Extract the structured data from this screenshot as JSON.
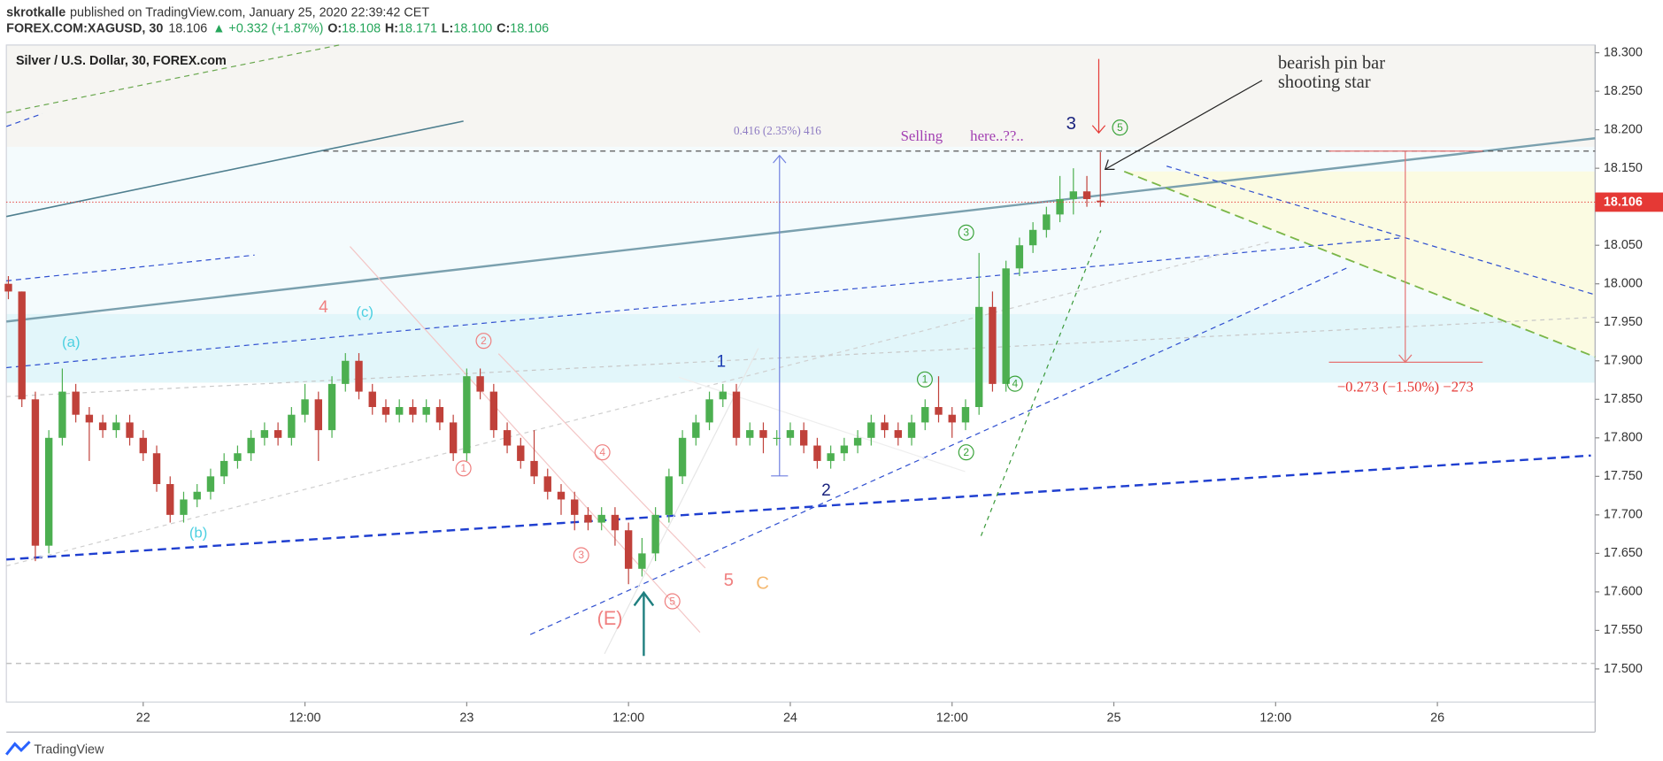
{
  "header": {
    "author": "skrotkalle",
    "published": "published on TradingView.com, January 25, 2020 22:39:42 CET",
    "symbol": "FOREX.COM:XAGUSD, 30",
    "last": "18.106",
    "change": "▲ +0.332 (+1.87%)",
    "ohlc_labels": [
      "O:",
      "H:",
      "L:",
      "C:"
    ],
    "ohlc": [
      "18.108",
      "18.171",
      "18.100",
      "18.106"
    ]
  },
  "chart_data": {
    "type": "candlestick",
    "title": "Silver / U.S. Dollar, 30, FOREX.com",
    "x": [
      -10,
      -9,
      -8,
      -7,
      -6,
      -5,
      -4,
      -3,
      -2,
      -1,
      0,
      1,
      2,
      3,
      4,
      5,
      6,
      7,
      8,
      9,
      10,
      11,
      12,
      13,
      14,
      15,
      16,
      17,
      18,
      19,
      20,
      21,
      22,
      23,
      24,
      25,
      26,
      27,
      28,
      29,
      30,
      31,
      32,
      33,
      34,
      35,
      36,
      37,
      38,
      39,
      40,
      41,
      42,
      43,
      44,
      45,
      46,
      47,
      48,
      49,
      50,
      51,
      52,
      53,
      54,
      55,
      56,
      57,
      58,
      59,
      60,
      61,
      62,
      63,
      64,
      65,
      66,
      67,
      68,
      69,
      70,
      71
    ],
    "ohlc": [
      [
        18.0,
        18.01,
        17.98,
        17.99
      ],
      [
        17.99,
        17.99,
        17.84,
        17.85
      ],
      [
        17.85,
        17.86,
        17.64,
        17.66
      ],
      [
        17.66,
        17.81,
        17.65,
        17.8
      ],
      [
        17.8,
        17.89,
        17.79,
        17.86
      ],
      [
        17.86,
        17.87,
        17.82,
        17.83
      ],
      [
        17.83,
        17.84,
        17.77,
        17.82
      ],
      [
        17.82,
        17.83,
        17.8,
        17.81
      ],
      [
        17.81,
        17.83,
        17.8,
        17.82
      ],
      [
        17.82,
        17.83,
        17.79,
        17.8
      ],
      [
        17.8,
        17.81,
        17.77,
        17.78
      ],
      [
        17.78,
        17.79,
        17.73,
        17.74
      ],
      [
        17.74,
        17.75,
        17.69,
        17.7
      ],
      [
        17.7,
        17.73,
        17.69,
        17.72
      ],
      [
        17.72,
        17.74,
        17.71,
        17.73
      ],
      [
        17.73,
        17.76,
        17.72,
        17.75
      ],
      [
        17.75,
        17.78,
        17.74,
        17.77
      ],
      [
        17.77,
        17.79,
        17.76,
        17.78
      ],
      [
        17.78,
        17.81,
        17.77,
        17.8
      ],
      [
        17.8,
        17.82,
        17.79,
        17.81
      ],
      [
        17.81,
        17.82,
        17.79,
        17.8
      ],
      [
        17.8,
        17.84,
        17.79,
        17.83
      ],
      [
        17.83,
        17.87,
        17.82,
        17.85
      ],
      [
        17.85,
        17.86,
        17.77,
        17.81
      ],
      [
        17.81,
        17.88,
        17.8,
        17.87
      ],
      [
        17.87,
        17.91,
        17.86,
        17.9
      ],
      [
        17.9,
        17.91,
        17.85,
        17.86
      ],
      [
        17.86,
        17.87,
        17.83,
        17.84
      ],
      [
        17.84,
        17.85,
        17.82,
        17.83
      ],
      [
        17.83,
        17.85,
        17.82,
        17.84
      ],
      [
        17.84,
        17.85,
        17.82,
        17.83
      ],
      [
        17.83,
        17.85,
        17.82,
        17.84
      ],
      [
        17.84,
        17.85,
        17.81,
        17.82
      ],
      [
        17.82,
        17.83,
        17.77,
        17.78
      ],
      [
        17.78,
        17.89,
        17.77,
        17.88
      ],
      [
        17.88,
        17.89,
        17.85,
        17.86
      ],
      [
        17.86,
        17.87,
        17.8,
        17.81
      ],
      [
        17.81,
        17.82,
        17.78,
        17.79
      ],
      [
        17.79,
        17.8,
        17.76,
        17.77
      ],
      [
        17.77,
        17.81,
        17.74,
        17.75
      ],
      [
        17.75,
        17.76,
        17.72,
        17.73
      ],
      [
        17.73,
        17.74,
        17.7,
        17.72
      ],
      [
        17.72,
        17.73,
        17.68,
        17.7
      ],
      [
        17.7,
        17.71,
        17.68,
        17.69
      ],
      [
        17.69,
        17.71,
        17.68,
        17.7
      ],
      [
        17.7,
        17.71,
        17.66,
        17.68
      ],
      [
        17.68,
        17.69,
        17.61,
        17.63
      ],
      [
        17.63,
        17.67,
        17.62,
        17.65
      ],
      [
        17.65,
        17.71,
        17.64,
        17.7
      ],
      [
        17.7,
        17.76,
        17.69,
        17.75
      ],
      [
        17.75,
        17.81,
        17.74,
        17.8
      ],
      [
        17.8,
        17.83,
        17.79,
        17.82
      ],
      [
        17.82,
        17.86,
        17.81,
        17.85
      ],
      [
        17.85,
        17.87,
        17.84,
        17.86
      ],
      [
        17.86,
        17.87,
        17.79,
        17.8
      ],
      [
        17.8,
        17.82,
        17.79,
        17.81
      ],
      [
        17.81,
        17.82,
        17.78,
        17.8
      ],
      [
        17.8,
        17.81,
        17.79,
        17.8
      ],
      [
        17.8,
        17.82,
        17.79,
        17.81
      ],
      [
        17.81,
        17.82,
        17.78,
        17.79
      ],
      [
        17.79,
        17.8,
        17.76,
        17.77
      ],
      [
        17.77,
        17.79,
        17.76,
        17.78
      ],
      [
        17.78,
        17.8,
        17.77,
        17.79
      ],
      [
        17.79,
        17.81,
        17.78,
        17.8
      ],
      [
        17.8,
        17.83,
        17.79,
        17.82
      ],
      [
        17.82,
        17.83,
        17.8,
        17.81
      ],
      [
        17.81,
        17.82,
        17.79,
        17.8
      ],
      [
        17.8,
        17.83,
        17.79,
        17.82
      ],
      [
        17.82,
        17.85,
        17.81,
        17.84
      ],
      [
        17.84,
        17.88,
        17.82,
        17.83
      ],
      [
        17.83,
        17.84,
        17.8,
        17.82
      ],
      [
        17.82,
        17.85,
        17.81,
        17.84
      ],
      [
        17.84,
        18.04,
        17.83,
        17.97
      ],
      [
        17.97,
        17.99,
        17.86,
        17.87
      ],
      [
        17.87,
        18.03,
        17.86,
        18.02
      ],
      [
        18.02,
        18.06,
        18.01,
        18.05
      ],
      [
        18.05,
        18.08,
        18.04,
        18.07
      ],
      [
        18.07,
        18.1,
        18.06,
        18.09
      ],
      [
        18.09,
        18.14,
        18.08,
        18.11
      ],
      [
        18.11,
        18.15,
        18.09,
        18.12
      ],
      [
        18.12,
        18.14,
        18.1,
        18.11
      ],
      [
        18.108,
        18.171,
        18.1,
        18.106
      ]
    ],
    "up_color": "#4caf50",
    "down_color": "#c0413a",
    "xlim": [
      -10.15,
      107.7
    ],
    "xticks": [
      {
        "value": 0,
        "label": "22"
      },
      {
        "value": 12,
        "label": "12:00"
      },
      {
        "value": 24,
        "label": "23"
      },
      {
        "value": 36,
        "label": "12:00"
      },
      {
        "value": 48,
        "label": "24"
      },
      {
        "value": 60,
        "label": "12:00"
      },
      {
        "value": 72,
        "label": "25"
      },
      {
        "value": 84,
        "label": "12:00"
      },
      {
        "value": 96,
        "label": "26"
      }
    ],
    "ylim": [
      17.457,
      18.31
    ],
    "yticks": [
      {
        "value": 17.5,
        "label": "17.500"
      },
      {
        "value": 17.55,
        "label": "17.550"
      },
      {
        "value": 17.6,
        "label": "17.600"
      },
      {
        "value": 17.65,
        "label": "17.650"
      },
      {
        "value": 17.7,
        "label": "17.700"
      },
      {
        "value": 17.75,
        "label": "17.750"
      },
      {
        "value": 17.8,
        "label": "17.800"
      },
      {
        "value": 17.85,
        "label": "17.850"
      },
      {
        "value": 17.9,
        "label": "17.900"
      },
      {
        "value": 17.95,
        "label": "17.950"
      },
      {
        "value": 18.0,
        "label": "18.000"
      },
      {
        "value": 18.05,
        "label": "18.050"
      },
      {
        "value": 18.1,
        "label": "18.100"
      },
      {
        "value": 18.15,
        "label": "18.150"
      },
      {
        "value": 18.2,
        "label": "18.200"
      },
      {
        "value": 18.25,
        "label": "18.250"
      },
      {
        "value": 18.3,
        "label": "18.300"
      }
    ],
    "grid": false,
    "last_price": 18.106,
    "last_price_color": "#e53935",
    "annotations": [
      "(a)",
      "(b)",
      "(c)",
      "4",
      "(E)",
      "5",
      "C",
      "1",
      "2",
      "3",
      "1",
      "2",
      "3",
      "4",
      "5",
      "1",
      "2",
      "3",
      "4",
      "5",
      "0.416 (2.35%) 416",
      "Selling",
      "here..??..",
      "bearish pin bar",
      "shooting star",
      "−0.273 (−1.50%) −273"
    ]
  },
  "footer": {
    "brand": "TradingView"
  }
}
